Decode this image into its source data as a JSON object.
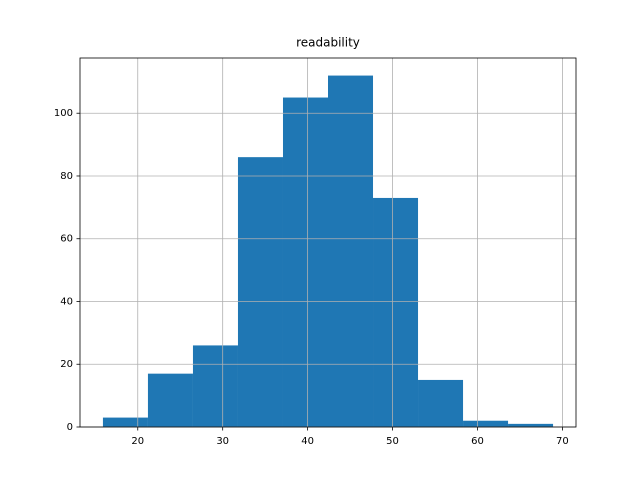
{
  "chart_data": {
    "type": "histogram",
    "title": "readability",
    "bins": [
      15.9,
      21.2,
      26.5,
      31.8,
      37.1,
      42.4,
      47.7,
      53.0,
      58.3,
      63.6,
      68.9
    ],
    "values": [
      3,
      17,
      26,
      86,
      105,
      112,
      73,
      15,
      2,
      1
    ],
    "color": "#1f77b4",
    "xlim": [
      13.2,
      71.6
    ],
    "xticks": [
      20,
      30,
      40,
      50,
      60,
      70
    ],
    "ylim": [
      0,
      117.6
    ],
    "yticks": [
      0,
      20,
      40,
      60,
      80,
      100
    ],
    "grid": true
  }
}
